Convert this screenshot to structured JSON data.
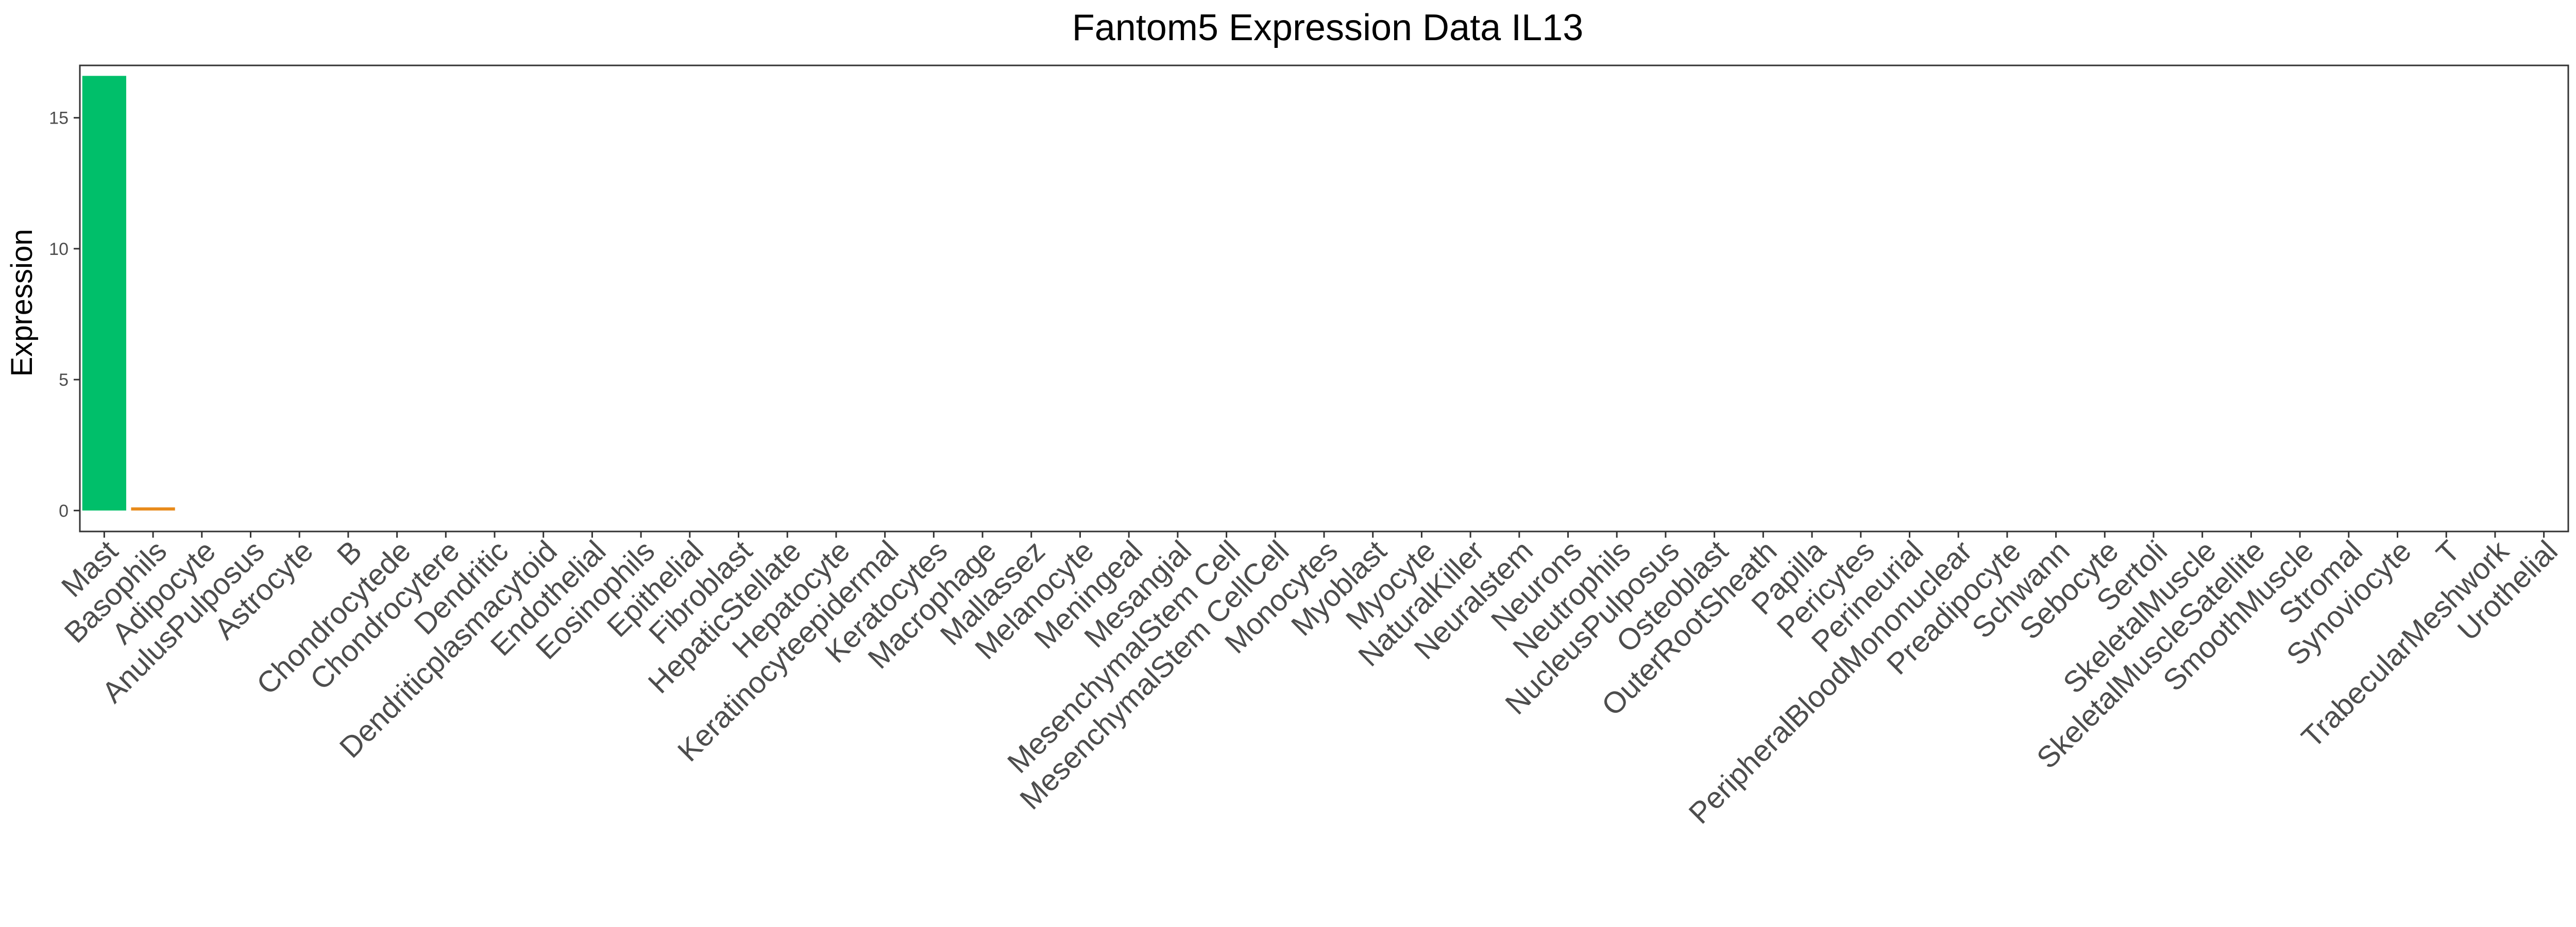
{
  "chart_data": {
    "type": "bar",
    "title": "Fantom5 Expression Data IL13",
    "xlabel": "",
    "ylabel": "Expression",
    "ylim": [
      -0.8,
      17.0
    ],
    "yticks": [
      0,
      5,
      10,
      15
    ],
    "grid": false,
    "legend": "none",
    "categories": [
      "Mast",
      "Basophils",
      "Adipocyte",
      "AnulusPulposus",
      "Astrocyte",
      "B",
      "Chondrocytede",
      "Chondrocytere",
      "Dendritic",
      "Dendriticplasmacytoid",
      "Endothelial",
      "Eosinophils",
      "Epithelial",
      "Fibroblast",
      "HepaticStellate",
      "Hepatocyte",
      "Keratinocyteepidermal",
      "Keratocytes",
      "Macrophage",
      "Mallassez",
      "Melanocyte",
      "Meningeal",
      "Mesangial",
      "MesenchymalStem Cell",
      "MesenchymalStem CellCell",
      "Monocytes",
      "Myoblast",
      "Myocyte",
      "NaturalKiller",
      "Neuralstem",
      "Neurons",
      "Neutrophils",
      "NucleusPulposus",
      "Osteoblast",
      "OuterRootSheath",
      "Papilla",
      "Pericytes",
      "Perineurial",
      "PeripheralBloodMononuclear",
      "Preadipocyte",
      "Schwann",
      "Sebocyte",
      "Sertoli",
      "SkeletalMuscle",
      "SkeletalMuscleSatellite",
      "SmoothMuscle",
      "Stromal",
      "Synoviocyte",
      "T",
      "TrabecularMeshwork",
      "Urothelial"
    ],
    "values": [
      16.6,
      0.12,
      0,
      0,
      0,
      0,
      0,
      0,
      0,
      0,
      0,
      0,
      0,
      0,
      0,
      0,
      0,
      0,
      0,
      0,
      0,
      0,
      0,
      0,
      0,
      0,
      0,
      0,
      0,
      0,
      0,
      0,
      0,
      0,
      0,
      0,
      0,
      0,
      0,
      0,
      0,
      0,
      0,
      0,
      0,
      0,
      0,
      0,
      0,
      0,
      0
    ],
    "bar_colors": {
      "Mast": "#00BF6A",
      "Basophils": "#E88A1A"
    }
  }
}
